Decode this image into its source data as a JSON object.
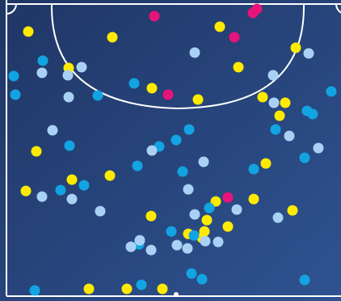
{
  "colors": {
    "pitch_top_left": "#1f3665",
    "pitch_bottom_right": "#2f5391",
    "lines": "#ffffff",
    "yellow": "#ffea00",
    "magenta": "#e8137a",
    "cyan": "#12a4e2",
    "light_blue": "#a9d1f5"
  },
  "chart_data": {
    "type": "scatter",
    "title": "",
    "xlabel": "",
    "ylabel": "",
    "legend": "none",
    "grid": false,
    "note": "",
    "series": [
      {
        "color": "yellow",
        "points": [
          [
            35,
            39
          ],
          [
            139,
            46
          ],
          [
            272,
            33
          ],
          [
            366,
            59
          ],
          [
            85,
            84
          ],
          [
            295,
            83
          ],
          [
            188,
            109
          ],
          [
            245,
            123
          ],
          [
            325,
            120
          ],
          [
            353,
            127
          ],
          [
            346,
            143
          ],
          [
            45,
            187
          ],
          [
            329,
            202
          ],
          [
            136,
            217
          ],
          [
            89,
            222
          ],
          [
            32,
            236
          ],
          [
            267,
            249
          ],
          [
            314,
            246
          ],
          [
            362,
            260
          ],
          [
            187,
            267
          ],
          [
            256,
            272
          ],
          [
            282,
            280
          ],
          [
            233,
            289
          ],
          [
            253,
            286
          ],
          [
            250,
            294
          ],
          [
            110,
            357
          ],
          [
            157,
            357
          ],
          [
            201,
            357
          ]
        ]
      },
      {
        "color": "magenta",
        "points": [
          [
            191,
            20
          ],
          [
            313,
            16
          ],
          [
            318,
            11
          ],
          [
            290,
            46
          ],
          [
            208,
            117
          ],
          [
            282,
            244
          ]
        ]
      },
      {
        "color": "cyan",
        "points": [
          [
            53,
            75
          ],
          [
            17,
            94
          ],
          [
            19,
            117
          ],
          [
            166,
            103
          ],
          [
            121,
            118
          ],
          [
            410,
            113
          ],
          [
            380,
            137
          ],
          [
            387,
            141
          ],
          [
            341,
            160
          ],
          [
            234,
            160
          ],
          [
            86,
            180
          ],
          [
            218,
            173
          ],
          [
            197,
            181
          ],
          [
            377,
            195
          ],
          [
            170,
            205
          ],
          [
            314,
            209
          ],
          [
            226,
            212
          ],
          [
            104,
            229
          ],
          [
            75,
            235
          ],
          [
            259,
            257
          ],
          [
            212,
            286
          ],
          [
            240,
            291
          ],
          [
            172,
            302
          ],
          [
            237,
            338
          ],
          [
            250,
            345
          ],
          [
            175,
            352
          ],
          [
            43,
            359
          ],
          [
            377,
            346
          ]
        ]
      },
      {
        "color": "light_blue",
        "points": [
          [
            101,
            83
          ],
          [
            52,
            90
          ],
          [
            84,
            93
          ],
          [
            241,
            65
          ],
          [
            382,
            66
          ],
          [
            338,
            93
          ],
          [
            85,
            120
          ],
          [
            339,
            127
          ],
          [
            65,
            161
          ],
          [
            358,
            168
          ],
          [
            188,
            186
          ],
          [
            394,
            183
          ],
          [
            252,
            200
          ],
          [
            233,
            234
          ],
          [
            52,
            243
          ],
          [
            89,
            246
          ],
          [
            124,
            261
          ],
          [
            241,
            265
          ],
          [
            293,
            259
          ],
          [
            344,
            269
          ],
          [
            270,
            299
          ],
          [
            254,
            298
          ],
          [
            173,
            297
          ],
          [
            162,
            305
          ],
          [
            187,
            309
          ],
          [
            219,
            303
          ],
          [
            232,
            307
          ]
        ]
      }
    ]
  }
}
